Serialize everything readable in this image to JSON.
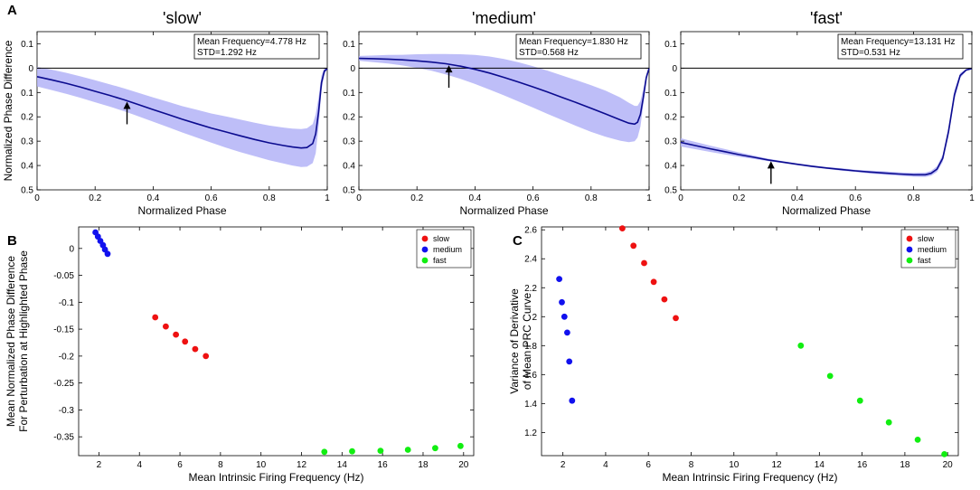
{
  "panel_labels": [
    "A",
    "B",
    "C"
  ],
  "colors": {
    "curve": "#0b0b8f",
    "band": "#b3b3f7",
    "slow": "#ee1111",
    "medium": "#1111ee",
    "fast": "#11ee11"
  },
  "chart_data": [
    {
      "id": "A-slow",
      "type": "area",
      "panel_label": "A",
      "title": "'slow'",
      "xlabel": "Normalized Phase",
      "ylabel": "Normalized Phase Difference",
      "xlim": [
        0,
        1
      ],
      "ylim": [
        -0.5,
        0.15
      ],
      "y_reversed_display": true,
      "xticks": [
        0,
        0.2,
        0.4,
        0.6,
        0.8,
        1
      ],
      "xticklabels": [
        "0",
        "0.2",
        "0.4",
        "0.6",
        "0.8",
        "1"
      ],
      "yticks": [
        0.1,
        0,
        -0.1,
        -0.2,
        -0.3,
        -0.4,
        -0.5
      ],
      "yticklabels": [
        "0.1",
        "0",
        "0.1",
        "0.2",
        "0.3",
        "0.4",
        "0.5"
      ],
      "info": [
        "Mean Frequency=4.778 Hz",
        "STD=1.292 Hz"
      ],
      "arrow_at": 0.31,
      "x": [
        0,
        0.05,
        0.1,
        0.15,
        0.2,
        0.25,
        0.3,
        0.35,
        0.4,
        0.45,
        0.5,
        0.55,
        0.6,
        0.65,
        0.7,
        0.75,
        0.8,
        0.85,
        0.88,
        0.91,
        0.93,
        0.95,
        0.96,
        0.97,
        0.98,
        0.99,
        1.0
      ],
      "mean": [
        -0.035,
        -0.048,
        -0.062,
        -0.078,
        -0.095,
        -0.112,
        -0.13,
        -0.15,
        -0.17,
        -0.19,
        -0.21,
        -0.228,
        -0.246,
        -0.262,
        -0.278,
        -0.293,
        -0.307,
        -0.318,
        -0.324,
        -0.328,
        -0.326,
        -0.31,
        -0.27,
        -0.18,
        -0.06,
        -0.012,
        -0.002
      ],
      "lower": [
        -0.075,
        -0.09,
        -0.105,
        -0.122,
        -0.14,
        -0.158,
        -0.177,
        -0.198,
        -0.22,
        -0.242,
        -0.264,
        -0.285,
        -0.306,
        -0.326,
        -0.345,
        -0.362,
        -0.378,
        -0.392,
        -0.4,
        -0.406,
        -0.405,
        -0.39,
        -0.35,
        -0.24,
        -0.09,
        -0.025,
        -0.005
      ],
      "upper": [
        0.005,
        -0.006,
        -0.019,
        -0.034,
        -0.05,
        -0.066,
        -0.083,
        -0.102,
        -0.12,
        -0.138,
        -0.156,
        -0.171,
        -0.186,
        -0.198,
        -0.211,
        -0.224,
        -0.236,
        -0.244,
        -0.248,
        -0.25,
        -0.247,
        -0.23,
        -0.19,
        -0.12,
        -0.03,
        0.0,
        0.0
      ]
    },
    {
      "id": "A-medium",
      "type": "area",
      "title": "'medium'",
      "xlabel": "Normalized Phase",
      "ylabel": "",
      "xlim": [
        0,
        1
      ],
      "ylim": [
        -0.5,
        0.15
      ],
      "y_reversed_display": true,
      "xticks": [
        0,
        0.2,
        0.4,
        0.6,
        0.8,
        1
      ],
      "xticklabels": [
        "0",
        "0.2",
        "0.4",
        "0.6",
        "0.8",
        "1"
      ],
      "yticks": [
        0.1,
        0,
        -0.1,
        -0.2,
        -0.3,
        -0.4,
        -0.5
      ],
      "yticklabels": [
        "0.1",
        "0",
        "0.1",
        "0.2",
        "0.3",
        "0.4",
        "0.5"
      ],
      "info": [
        "Mean Frequency=1.830 Hz",
        "STD=0.568 Hz"
      ],
      "arrow_at": 0.31,
      "x": [
        0,
        0.05,
        0.1,
        0.15,
        0.2,
        0.25,
        0.3,
        0.35,
        0.4,
        0.45,
        0.5,
        0.55,
        0.6,
        0.65,
        0.7,
        0.75,
        0.8,
        0.85,
        0.9,
        0.93,
        0.95,
        0.96,
        0.97,
        0.98,
        0.99,
        1.0
      ],
      "mean": [
        0.04,
        0.039,
        0.037,
        0.034,
        0.03,
        0.025,
        0.018,
        0.008,
        -0.005,
        -0.02,
        -0.038,
        -0.057,
        -0.077,
        -0.098,
        -0.12,
        -0.142,
        -0.165,
        -0.188,
        -0.212,
        -0.226,
        -0.23,
        -0.222,
        -0.19,
        -0.12,
        -0.04,
        0.0
      ],
      "lower": [
        0.03,
        0.025,
        0.019,
        0.011,
        0.001,
        -0.011,
        -0.026,
        -0.044,
        -0.065,
        -0.088,
        -0.112,
        -0.137,
        -0.162,
        -0.188,
        -0.213,
        -0.238,
        -0.262,
        -0.282,
        -0.298,
        -0.304,
        -0.3,
        -0.285,
        -0.24,
        -0.15,
        -0.055,
        -0.005
      ],
      "upper": [
        0.05,
        0.052,
        0.054,
        0.055,
        0.057,
        0.058,
        0.058,
        0.057,
        0.054,
        0.048,
        0.038,
        0.024,
        0.008,
        -0.01,
        -0.03,
        -0.05,
        -0.07,
        -0.092,
        -0.12,
        -0.142,
        -0.155,
        -0.155,
        -0.135,
        -0.085,
        -0.025,
        0.0
      ]
    },
    {
      "id": "A-fast",
      "type": "area",
      "title": "'fast'",
      "xlabel": "Normalized Phase",
      "ylabel": "",
      "xlim": [
        0,
        1
      ],
      "ylim": [
        -0.5,
        0.15
      ],
      "y_reversed_display": true,
      "xticks": [
        0,
        0.2,
        0.4,
        0.6,
        0.8,
        1
      ],
      "xticklabels": [
        "0",
        "0.2",
        "0.4",
        "0.6",
        "0.8",
        "1"
      ],
      "yticks": [
        0.1,
        0,
        -0.1,
        -0.2,
        -0.3,
        -0.4,
        -0.5
      ],
      "yticklabels": [
        "0.1",
        "0",
        "0.1",
        "0.2",
        "0.3",
        "0.4",
        "0.5"
      ],
      "info": [
        "Mean Frequency=13.131 Hz",
        "STD=0.531 Hz"
      ],
      "arrow_at": 0.31,
      "x": [
        0,
        0.05,
        0.1,
        0.15,
        0.2,
        0.25,
        0.3,
        0.35,
        0.4,
        0.45,
        0.5,
        0.55,
        0.6,
        0.65,
        0.7,
        0.75,
        0.8,
        0.84,
        0.86,
        0.88,
        0.9,
        0.92,
        0.94,
        0.96,
        0.98,
        1.0
      ],
      "mean": [
        -0.305,
        -0.318,
        -0.331,
        -0.343,
        -0.355,
        -0.366,
        -0.377,
        -0.386,
        -0.395,
        -0.403,
        -0.41,
        -0.416,
        -0.422,
        -0.427,
        -0.431,
        -0.435,
        -0.438,
        -0.438,
        -0.432,
        -0.415,
        -0.37,
        -0.26,
        -0.11,
        -0.03,
        -0.008,
        -0.002
      ],
      "lower": [
        -0.322,
        -0.333,
        -0.344,
        -0.354,
        -0.364,
        -0.373,
        -0.382,
        -0.39,
        -0.399,
        -0.407,
        -0.414,
        -0.421,
        -0.427,
        -0.433,
        -0.438,
        -0.442,
        -0.446,
        -0.447,
        -0.442,
        -0.427,
        -0.385,
        -0.28,
        -0.13,
        -0.04,
        -0.012,
        -0.004
      ],
      "upper": [
        -0.288,
        -0.303,
        -0.318,
        -0.332,
        -0.346,
        -0.359,
        -0.372,
        -0.382,
        -0.391,
        -0.399,
        -0.406,
        -0.411,
        -0.417,
        -0.421,
        -0.424,
        -0.428,
        -0.43,
        -0.429,
        -0.422,
        -0.403,
        -0.355,
        -0.24,
        -0.09,
        -0.02,
        -0.004,
        0.0
      ]
    },
    {
      "id": "B",
      "type": "scatter",
      "panel_label": "B",
      "xlabel": "Mean Intrinsic Firing Frequency (Hz)",
      "ylabel": [
        "Mean Normalized Phase Difference",
        "For Perturbation at Highlighted Phase"
      ],
      "xlim": [
        1,
        20.5
      ],
      "ylim": [
        -0.385,
        0.04
      ],
      "xticks": [
        2,
        4,
        6,
        8,
        10,
        12,
        14,
        16,
        18,
        20
      ],
      "xticklabels": [
        "2",
        "4",
        "6",
        "8",
        "10",
        "12",
        "14",
        "16",
        "18",
        "20"
      ],
      "yticks": [
        0,
        -0.05,
        -0.1,
        -0.15,
        -0.2,
        -0.25,
        -0.3,
        -0.35
      ],
      "yticklabels": [
        "0",
        "-0.05",
        "-0.1",
        "-0.15",
        "-0.2",
        "-0.25",
        "-0.3",
        "-0.35"
      ],
      "legend": {
        "position": "top-right",
        "entries": [
          "slow",
          "medium",
          "fast"
        ]
      },
      "series": [
        {
          "name": "slow",
          "x": [
            4.78,
            5.3,
            5.8,
            6.25,
            6.75,
            7.28
          ],
          "y": [
            -0.128,
            -0.145,
            -0.16,
            -0.173,
            -0.187,
            -0.2
          ]
        },
        {
          "name": "medium",
          "x": [
            1.83,
            1.95,
            2.07,
            2.2,
            2.3,
            2.43
          ],
          "y": [
            0.03,
            0.022,
            0.014,
            0.006,
            -0.002,
            -0.01
          ]
        },
        {
          "name": "fast",
          "x": [
            13.13,
            14.5,
            15.9,
            17.25,
            18.6,
            19.85
          ],
          "y": [
            -0.378,
            -0.377,
            -0.376,
            -0.374,
            -0.371,
            -0.367
          ]
        }
      ]
    },
    {
      "id": "C",
      "type": "scatter",
      "panel_label": "C",
      "xlabel": "Mean Intrinsic Firing Frequency (Hz)",
      "ylabel": [
        "Variance of Derivative",
        "of Mean PRC Curve"
      ],
      "xlim": [
        1,
        20.5
      ],
      "ylim": [
        1.04,
        2.62
      ],
      "xticks": [
        2,
        4,
        6,
        8,
        10,
        12,
        14,
        16,
        18,
        20
      ],
      "xticklabels": [
        "2",
        "4",
        "6",
        "8",
        "10",
        "12",
        "14",
        "16",
        "18",
        "20"
      ],
      "yticks": [
        1.2,
        1.4,
        1.6,
        1.8,
        2.0,
        2.2,
        2.4,
        2.6
      ],
      "yticklabels": [
        "1.2",
        "1.4",
        "1.6",
        "1.8",
        "2",
        "2.2",
        "2.4",
        "2.6"
      ],
      "legend": {
        "position": "top-right",
        "entries": [
          "slow",
          "medium",
          "fast"
        ]
      },
      "series": [
        {
          "name": "slow",
          "x": [
            4.78,
            5.3,
            5.8,
            6.25,
            6.75,
            7.28
          ],
          "y": [
            2.61,
            2.49,
            2.37,
            2.24,
            2.12,
            1.99
          ]
        },
        {
          "name": "medium",
          "x": [
            1.83,
            1.95,
            2.07,
            2.2,
            2.3,
            2.43
          ],
          "y": [
            2.26,
            2.1,
            2.0,
            1.89,
            1.69,
            1.42
          ]
        },
        {
          "name": "fast",
          "x": [
            13.13,
            14.5,
            15.9,
            17.25,
            18.6,
            19.85
          ],
          "y": [
            1.8,
            1.59,
            1.42,
            1.27,
            1.15,
            1.05
          ]
        }
      ]
    }
  ]
}
